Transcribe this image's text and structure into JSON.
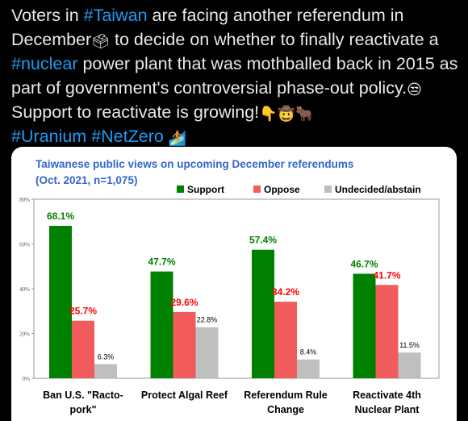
{
  "tweet": {
    "s1": "Voters in ",
    "h1": "#Taiwan",
    "s2": " are facing another referendum in December",
    "e1": "🗳",
    "s3": " to decide on whether to finally reactivate a ",
    "h2": "#nuclear",
    "s4": " power plant that was mothballed back in 2015 as part of government's controversial phase-out policy.",
    "e2": "😒",
    "s5": " Support to reactivate is growing!",
    "e3": "👇",
    "e4": "🤠",
    "e5": "🐂",
    "h3": "#Uranium",
    "h4": "#NetZero",
    "e6": "🏄"
  },
  "chart_data": {
    "type": "bar",
    "title_line1": "Taiwanese public views on upcoming December referendums",
    "title_line2": "(Oct. 2021, n=1,075)",
    "categories": [
      [
        "Ban U.S. \"Racto-",
        "pork\""
      ],
      [
        "Protect Algal Reef"
      ],
      [
        "Referendum Rule",
        "Change"
      ],
      [
        "Reactivate 4th",
        "Nuclear Plant"
      ]
    ],
    "series": [
      {
        "name": "Support",
        "color": "#008000",
        "label_color": "#008000",
        "values": [
          68.1,
          47.7,
          57.4,
          46.7
        ],
        "labels": [
          "68.1%",
          "47.7%",
          "57.4%",
          "46.7%"
        ]
      },
      {
        "name": "Oppose",
        "color": "#f15b5b",
        "label_color": "#ff0000",
        "values": [
          25.7,
          29.6,
          34.2,
          41.7
        ],
        "labels": [
          "25.7%",
          "29.6%",
          "34.2%",
          "41.7%"
        ]
      },
      {
        "name": "Undecided/abstain",
        "color": "#bfbfbf",
        "label_color": "#000000",
        "values": [
          6.3,
          22.8,
          8.4,
          11.5
        ],
        "labels": [
          "6.3%",
          "22.8%",
          "8.4%",
          "11.5%"
        ]
      }
    ],
    "yticks": [
      "0%",
      "20%",
      "40%",
      "60%",
      "80%"
    ],
    "ylim": [
      0,
      80
    ],
    "title_color": "#3366cc"
  }
}
